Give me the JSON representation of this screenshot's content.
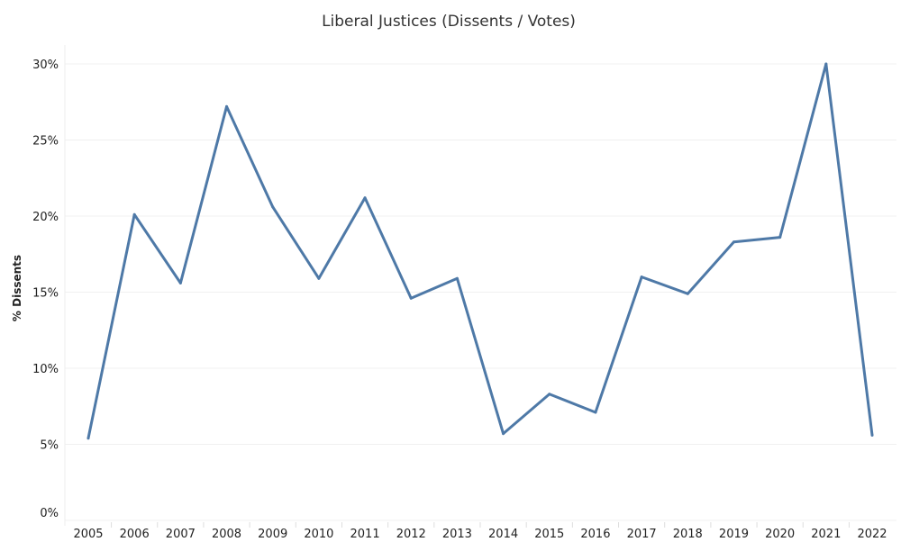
{
  "chart_data": {
    "type": "line",
    "title": "Liberal Justices (Dissents / Votes)",
    "xlabel": "",
    "ylabel": "% Dissents",
    "ylim": [
      0,
      30
    ],
    "yticks": [
      "0%",
      "5%",
      "10%",
      "15%",
      "20%",
      "25%",
      "30%"
    ],
    "ytick_values": [
      0,
      5,
      10,
      15,
      20,
      25,
      30
    ],
    "grid": true,
    "color": "#4e79a7",
    "categories": [
      "2005",
      "2006",
      "2007",
      "2008",
      "2009",
      "2010",
      "2011",
      "2012",
      "2013",
      "2014",
      "2015",
      "2016",
      "2017",
      "2018",
      "2019",
      "2020",
      "2021",
      "2022"
    ],
    "series": [
      {
        "name": "% Dissents",
        "values": [
          5.4,
          20.1,
          15.6,
          27.2,
          20.6,
          15.9,
          21.2,
          14.6,
          15.9,
          5.7,
          8.3,
          7.1,
          16.0,
          14.9,
          18.3,
          18.6,
          30.0,
          5.6
        ]
      }
    ]
  }
}
